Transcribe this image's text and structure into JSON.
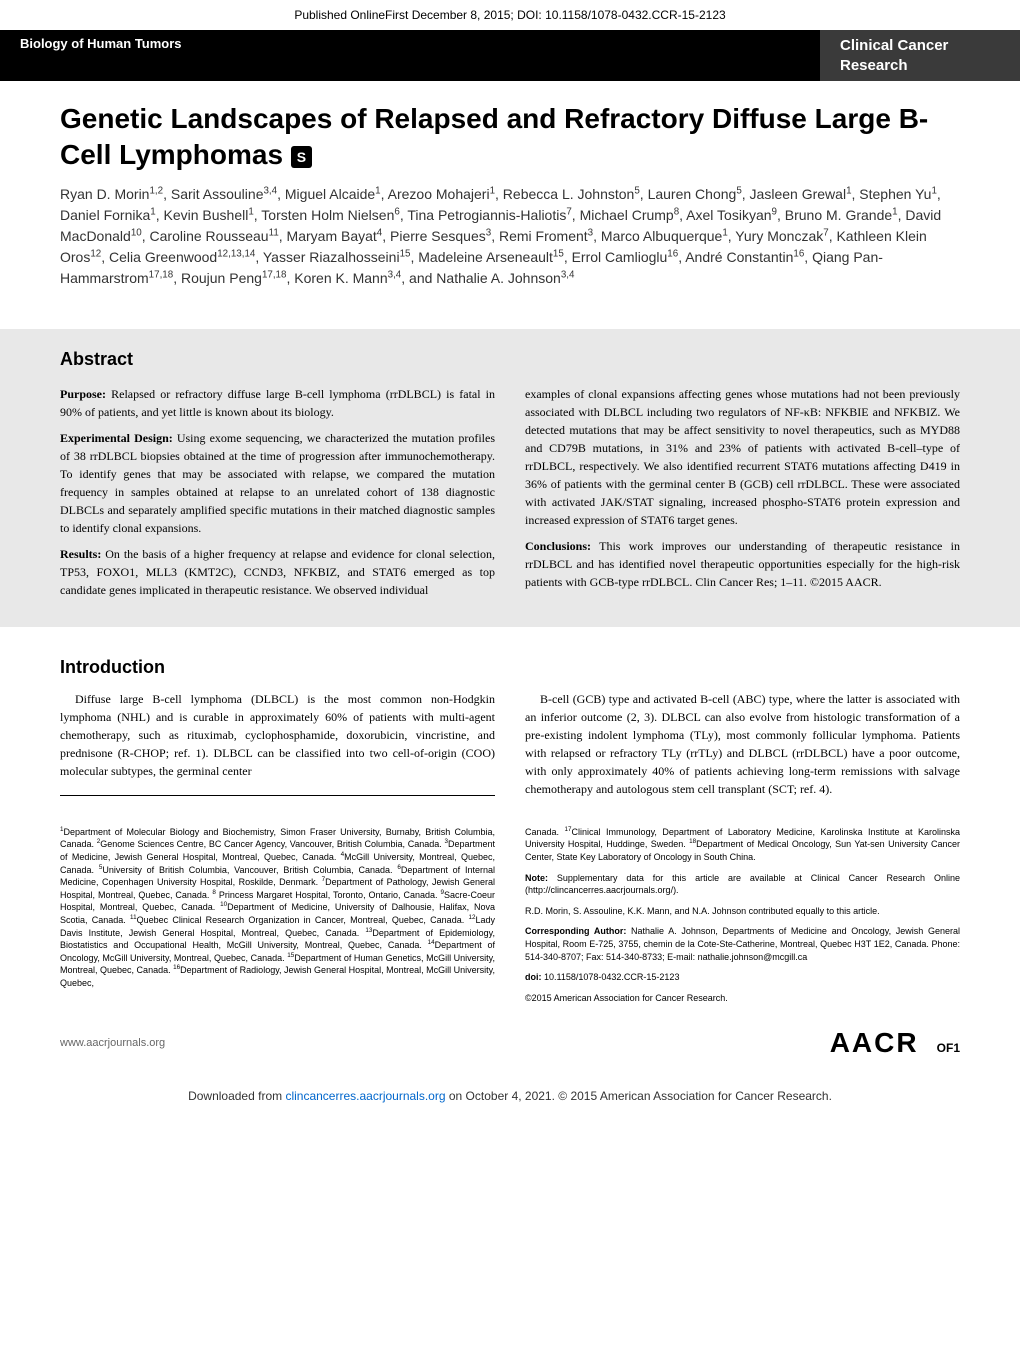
{
  "header": {
    "online_first": "Published OnlineFirst December 8, 2015; DOI: 10.1158/1078-0432.CCR-15-2123",
    "section": "Biology of Human Tumors",
    "journal": "Clinical Cancer Research"
  },
  "article": {
    "title": "Genetic Landscapes of Relapsed and Refractory Diffuse Large B-Cell Lymphomas",
    "supp_marker": "S",
    "authors_html": "Ryan D. Morin<sup>1,2</sup>, Sarit Assouline<sup>3,4</sup>, Miguel Alcaide<sup>1</sup>, Arezoo Mohajeri<sup>1</sup>, Rebecca L. Johnston<sup>5</sup>, Lauren Chong<sup>5</sup>, Jasleen Grewal<sup>1</sup>, Stephen Yu<sup>1</sup>, Daniel Fornika<sup>1</sup>, Kevin Bushell<sup>1</sup>, Torsten Holm Nielsen<sup>6</sup>, Tina Petrogiannis-Haliotis<sup>7</sup>, Michael Crump<sup>8</sup>, Axel Tosikyan<sup>9</sup>, Bruno M. Grande<sup>1</sup>, David MacDonald<sup>10</sup>, Caroline Rousseau<sup>11</sup>, Maryam Bayat<sup>4</sup>, Pierre Sesques<sup>3</sup>, Remi Froment<sup>3</sup>, Marco Albuquerque<sup>1</sup>, Yury Monczak<sup>7</sup>, Kathleen Klein Oros<sup>12</sup>, Celia Greenwood<sup>12,13,14</sup>, Yasser Riazalhosseini<sup>15</sup>, Madeleine Arseneault<sup>15</sup>, Errol Camlioglu<sup>16</sup>, André Constantin<sup>16</sup>, Qiang Pan-Hammarstrom<sup>17,18</sup>, Roujun Peng<sup>17,18</sup>, Koren K. Mann<sup>3,4</sup>, and Nathalie A. Johnson<sup>3,4</sup>"
  },
  "abstract": {
    "heading": "Abstract",
    "left": {
      "p1": "Purpose: Relapsed or refractory diffuse large B-cell lymphoma (rrDLBCL) is fatal in 90% of patients, and yet little is known about its biology.",
      "p2": "Experimental Design: Using exome sequencing, we characterized the mutation profiles of 38 rrDLBCL biopsies obtained at the time of progression after immunochemotherapy. To identify genes that may be associated with relapse, we compared the mutation frequency in samples obtained at relapse to an unrelated cohort of 138 diagnostic DLBCLs and separately amplified specific mutations in their matched diagnostic samples to identify clonal expansions.",
      "p3": "Results: On the basis of a higher frequency at relapse and evidence for clonal selection, TP53, FOXO1, MLL3 (KMT2C), CCND3, NFKBIZ, and STAT6 emerged as top candidate genes implicated in therapeutic resistance. We observed individual"
    },
    "right": {
      "p1": "examples of clonal expansions affecting genes whose mutations had not been previously associated with DLBCL including two regulators of NF-κB: NFKBIE and NFKBIZ. We detected mutations that may be affect sensitivity to novel therapeutics, such as MYD88 and CD79B mutations, in 31% and 23% of patients with activated B-cell–type of rrDLBCL, respectively. We also identified recurrent STAT6 mutations affecting D419 in 36% of patients with the germinal center B (GCB) cell rrDLBCL. These were associated with activated JAK/STAT signaling, increased phospho-STAT6 protein expression and increased expression of STAT6 target genes.",
      "p2": "Conclusions: This work improves our understanding of therapeutic resistance in rrDLBCL and has identified novel therapeutic opportunities especially for the high-risk patients with GCB-type rrDLBCL. Clin Cancer Res; 1–11. ©2015 AACR."
    }
  },
  "introduction": {
    "heading": "Introduction",
    "left": "Diffuse large B-cell lymphoma (DLBCL) is the most common non-Hodgkin lymphoma (NHL) and is curable in approximately 60% of patients with multi-agent chemotherapy, such as rituximab, cyclophosphamide, doxorubicin, vincristine, and prednisone (R-CHOP; ref. 1). DLBCL can be classified into two cell-of-origin (COO) molecular subtypes, the germinal center",
    "right": "B-cell (GCB) type and activated B-cell (ABC) type, where the latter is associated with an inferior outcome (2, 3). DLBCL can also evolve from histologic transformation of a pre-existing indolent lymphoma (TLy), most commonly follicular lymphoma. Patients with relapsed or refractory TLy (rrTLy) and DLBCL (rrDLBCL) have a poor outcome, with only approximately 40% of patients achieving long-term remissions with salvage chemotherapy and autologous stem cell transplant (SCT; ref. 4)."
  },
  "affiliations": {
    "left_html": "<sup>1</sup>Department of Molecular Biology and Biochemistry, Simon Fraser University, Burnaby, British Columbia, Canada. <sup>2</sup>Genome Sciences Centre, BC Cancer Agency, Vancouver, British Columbia, Canada. <sup>3</sup>Department of Medicine, Jewish General Hospital, Montreal, Quebec, Canada. <sup>4</sup>McGill University, Montreal, Quebec, Canada. <sup>5</sup>University of British Columbia, Vancouver, British Columbia, Canada. <sup>6</sup>Department of Internal Medicine, Copenhagen University Hospital, Roskilde, Denmark. <sup>7</sup>Department of Pathology, Jewish General Hospital, Montreal, Quebec, Canada. <sup>8</sup> Princess Margaret Hospital, Toronto, Ontario, Canada. <sup>9</sup>Sacre-Coeur Hospital, Montreal, Quebec, Canada. <sup>10</sup>Department of Medicine, University of Dalhousie, Halifax, Nova Scotia, Canada. <sup>11</sup>Quebec Clinical Research Organization in Cancer, Montreal, Quebec, Canada. <sup>12</sup>Lady Davis Institute, Jewish General Hospital, Montreal, Quebec, Canada. <sup>13</sup>Department of Epidemiology, Biostatistics and Occupational Health, McGill University, Montreal, Quebec, Canada. <sup>14</sup>Department of Oncology, McGill University, Montreal, Quebec, Canada. <sup>15</sup>Department of Human Genetics, McGill University, Montreal, Quebec, Canada. <sup>16</sup>Department of Radiology, Jewish General Hospital, Montreal, McGill University, Quebec,",
    "right": {
      "p1_html": "Canada. <sup>17</sup>Clinical Immunology, Department of Laboratory Medicine, Karolinska Institute at Karolinska University Hospital, Huddinge, Sweden. <sup>18</sup>Department of Medical Oncology, Sun Yat-sen University Cancer Center, State Key Laboratory of Oncology in South China.",
      "p2": "Note: Supplementary data for this article are available at Clinical Cancer Research Online (http://clincancerres.aacrjournals.org/).",
      "p3": "R.D. Morin, S. Assouline, K.K. Mann, and N.A. Johnson contributed equally to this article.",
      "p4": "Corresponding Author: Nathalie A. Johnson, Departments of Medicine and Oncology, Jewish General Hospital, Room E-725, 3755, chemin de la Cote-Ste-Catherine, Montreal, Quebec H3T 1E2, Canada. Phone: 514-340-8707; Fax: 514-340-8733; E-mail: nathalie.johnson@mcgill.ca",
      "p5": "doi: 10.1158/1078-0432.CCR-15-2123",
      "p6": "©2015 American Association for Cancer Research."
    }
  },
  "footer": {
    "url": "www.aacrjournals.org",
    "logo": "AACR",
    "page": "OF1",
    "download_prefix": "Downloaded from ",
    "download_link": "clincancerres.aacrjournals.org",
    "download_suffix": " on October 4, 2021. © 2015 American Association for Cancer Research."
  }
}
